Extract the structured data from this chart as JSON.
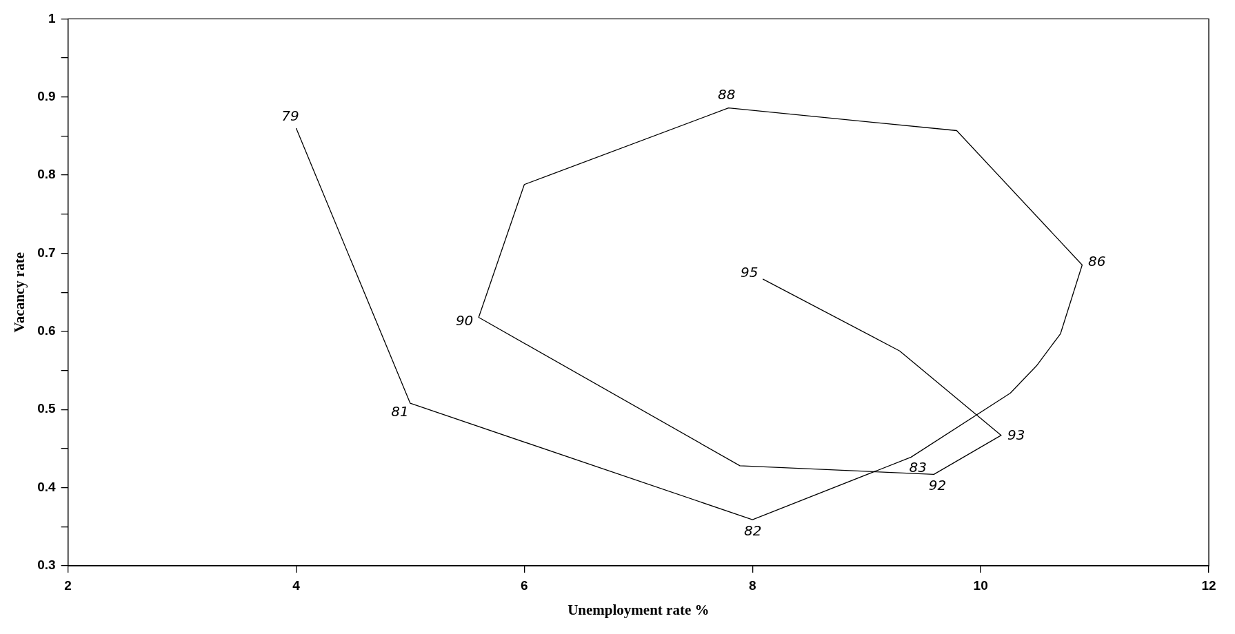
{
  "chart_data": {
    "type": "line",
    "xlabel": "Unemployment rate %",
    "ylabel": "Vacancy rate",
    "x": [
      4.0,
      5.0,
      8.0,
      9.39,
      10.26,
      10.49,
      10.7,
      10.89,
      9.79,
      7.79,
      6.0,
      5.6,
      7.89,
      9.59,
      10.18,
      9.29,
      8.09
    ],
    "series": [
      {
        "color": "#000000",
        "values": [
          0.86,
          0.508,
          0.359,
          0.439,
          0.521,
          0.556,
          0.597,
          0.685,
          0.857,
          0.886,
          0.788,
          0.618,
          0.428,
          0.417,
          0.467,
          0.575,
          0.667
        ]
      }
    ],
    "xlim": [
      2,
      12
    ],
    "xticks": [
      2,
      4,
      6,
      8,
      10,
      12
    ],
    "ylim": [
      0.3,
      1
    ],
    "yticks": [
      0.3,
      {
        "value": 0.35,
        "label": null
      },
      0.4,
      {
        "value": 0.45,
        "label": null
      },
      0.5,
      {
        "value": 0.55,
        "label": null
      },
      0.6,
      {
        "value": 0.65,
        "label": null
      },
      0.7,
      {
        "value": 0.75,
        "label": null
      },
      0.8,
      {
        "value": 0.85,
        "label": null
      },
      0.9,
      {
        "value": 0.95,
        "label": null
      },
      1
    ],
    "annotations": [
      {
        "text": "79",
        "x": 4.0,
        "y": 0.86
      },
      {
        "text": "81",
        "x": 5.0,
        "y": 0.508
      },
      {
        "text": "82",
        "x": 8.0,
        "y": 0.359
      },
      {
        "text": "83",
        "x": 9.39,
        "y": 0.439
      },
      {
        "text": "86",
        "x": 10.89,
        "y": 0.685
      },
      {
        "text": "88",
        "x": 7.79,
        "y": 0.886
      },
      {
        "text": "90",
        "x": 5.6,
        "y": 0.618
      },
      {
        "text": "92",
        "x": 9.59,
        "y": 0.417
      },
      {
        "text": "93",
        "x": 10.18,
        "y": 0.467
      },
      {
        "text": "95",
        "x": 8.09,
        "y": 0.667
      }
    ],
    "grid": false,
    "legend": false,
    "marker": "none",
    "line_style": "solid"
  }
}
